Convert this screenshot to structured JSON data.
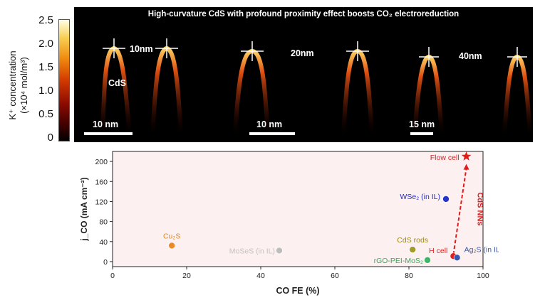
{
  "colorbar": {
    "label_line1": "K⁺ concentration",
    "label_line2": "(×10⁴ mol/m³)",
    "ticks": [
      "2.5",
      "2.0",
      "1.5",
      "1.0",
      "0.5",
      "0"
    ],
    "tick_values": [
      2.5,
      2.0,
      1.5,
      1.0,
      0.5,
      0
    ]
  },
  "simulation": {
    "title": "High-curvature CdS with profound proximity effect boosts CO₂ electroreduction",
    "panel1": {
      "curvature_label": "10nm",
      "material_label": "CdS",
      "scale_label": "10 nm"
    },
    "panel2": {
      "curvature_label": "20nm",
      "scale_label": "10 nm"
    },
    "panel3": {
      "curvature_label": "40nm",
      "scale_label": "15 nm"
    }
  },
  "chart_data": {
    "type": "scatter",
    "xlabel": "CO FE (%)",
    "ylabel": "j_CO (mA cm⁻²)",
    "xlim": [
      0,
      100
    ],
    "ylim": [
      -10,
      220
    ],
    "xticks": [
      0,
      20,
      40,
      60,
      80,
      100
    ],
    "yticks": [
      0,
      40,
      80,
      120,
      160,
      200
    ],
    "points": [
      {
        "label": "Cu₂S",
        "x": 16,
        "y": 32,
        "color": "#e8892a",
        "label_color": "#e08a1e"
      },
      {
        "label": "MoSeS (in IL)",
        "x": 45,
        "y": 22,
        "color": "#bdbdbd",
        "label_color": "#c2c2c2"
      },
      {
        "label": "CdS rods",
        "x": 81,
        "y": 24,
        "color": "#a09a2a",
        "label_color": "#9a8a1e"
      },
      {
        "label": "rGO-PEI-MoS₂",
        "x": 85,
        "y": 3,
        "color": "#3fb56a",
        "label_color": "#3aa85e"
      },
      {
        "label": "WSe₂ (in IL)",
        "x": 90,
        "y": 125,
        "color": "#2436c8",
        "label_color": "#1f2fd0"
      },
      {
        "label": "H cell",
        "x": 92,
        "y": 11,
        "color": "#e21b1b",
        "label_color": "#e21b1b"
      },
      {
        "label": "Ag₂S (in IL)",
        "x": 93,
        "y": 8,
        "color": "#3557b0",
        "label_color": "#3a5aa8"
      },
      {
        "label": "Flow cell",
        "x": 95.5,
        "y": 210,
        "color": "#e21b1b",
        "label_color": "#e21b1b",
        "marker": "star"
      }
    ],
    "arrow": {
      "from": [
        92,
        14
      ],
      "to": [
        95.5,
        195
      ],
      "label": "CdS NNs",
      "color": "#e21b1b"
    }
  }
}
